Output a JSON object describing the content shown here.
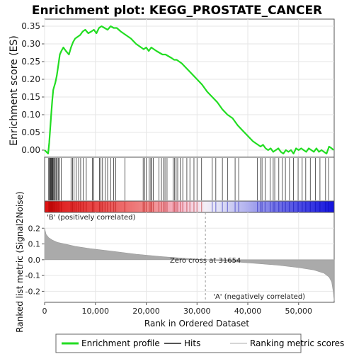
{
  "chart_data": {
    "type": "line",
    "title": "Enrichment plot: KEGG_PROSTATE_CANCER",
    "es_panel": {
      "ylabel": "Enrichment score (ES)",
      "ylim": [
        -0.02,
        0.37
      ],
      "yticks": [
        0.0,
        0.05,
        0.1,
        0.15,
        0.2,
        0.25,
        0.3,
        0.35
      ],
      "ytick_labels": [
        "0.00",
        "0.05",
        "0.10",
        "0.15",
        "0.20",
        "0.25",
        "0.30",
        "0.35"
      ],
      "series": [
        {
          "name": "Enrichment profile",
          "color": "#22dd22",
          "x": [
            0,
            700,
            900,
            1100,
            1300,
            1500,
            1700,
            1900,
            2100,
            2400,
            2700,
            3000,
            3300,
            3700,
            4200,
            4800,
            5200,
            5600,
            6000,
            6500,
            7000,
            7500,
            8000,
            8600,
            9200,
            9700,
            10200,
            10700,
            11200,
            11800,
            12400,
            13000,
            13600,
            14200,
            15000,
            16000,
            17000,
            18000,
            19000,
            19500,
            20000,
            20500,
            21000,
            21500,
            22000,
            22600,
            23200,
            23800,
            24400,
            25000,
            25500,
            26000,
            27000,
            28000,
            29000,
            30000,
            31000,
            32000,
            33000,
            34000,
            35000,
            36000,
            37000,
            38000,
            39000,
            40000,
            41000,
            42000,
            42500,
            43000,
            43500,
            44000,
            44500,
            45000,
            45500,
            46000,
            46500,
            47000,
            47500,
            48000,
            48500,
            49000,
            49500,
            50000,
            50500,
            51000,
            51500,
            52000,
            52500,
            53000,
            53500,
            54000,
            54500,
            55000,
            55500,
            56000,
            56500,
            56900
          ],
          "y": [
            0.0,
            -0.01,
            0.02,
            0.06,
            0.1,
            0.14,
            0.17,
            0.18,
            0.19,
            0.21,
            0.24,
            0.27,
            0.28,
            0.29,
            0.28,
            0.27,
            0.29,
            0.305,
            0.315,
            0.32,
            0.325,
            0.335,
            0.34,
            0.33,
            0.335,
            0.34,
            0.33,
            0.345,
            0.35,
            0.345,
            0.34,
            0.35,
            0.345,
            0.345,
            0.335,
            0.325,
            0.315,
            0.3,
            0.29,
            0.285,
            0.29,
            0.28,
            0.29,
            0.285,
            0.28,
            0.275,
            0.27,
            0.27,
            0.265,
            0.26,
            0.255,
            0.255,
            0.245,
            0.23,
            0.215,
            0.2,
            0.185,
            0.165,
            0.15,
            0.135,
            0.115,
            0.1,
            0.09,
            0.07,
            0.055,
            0.04,
            0.025,
            0.015,
            0.01,
            0.015,
            0.005,
            0.0,
            0.005,
            -0.005,
            0.0,
            0.005,
            -0.005,
            -0.01,
            0.0,
            -0.005,
            0.0,
            -0.01,
            0.005,
            0.0,
            0.005,
            0.0,
            -0.005,
            0.005,
            0.0,
            -0.005,
            0.005,
            -0.005,
            0.0,
            -0.005,
            -0.01,
            0.01,
            0.005,
            0.0
          ]
        }
      ]
    },
    "hits_panel": {
      "name": "Hits",
      "hit_positions": [
        800,
        950,
        1050,
        1150,
        1250,
        1350,
        1450,
        1550,
        1650,
        1800,
        1950,
        2100,
        2300,
        2500,
        2700,
        3000,
        3300,
        5200,
        5500,
        5800,
        6200,
        6700,
        7100,
        7600,
        8200,
        9400,
        9700,
        10800,
        11100,
        11400,
        11900,
        12400,
        13000,
        13600,
        14000,
        15800,
        19400,
        19700,
        20000,
        20600,
        20900,
        21100,
        21400,
        22500,
        23000,
        23400,
        23700,
        24100,
        25300,
        25600,
        25900,
        26200,
        26700,
        27200,
        28000,
        28600,
        29400,
        30000,
        30900,
        33000,
        33700,
        35000,
        36000,
        37500,
        38200,
        41900,
        42500,
        42800,
        43400,
        44400,
        45000,
        45300,
        46100,
        46800,
        47400,
        48200,
        49000,
        49900,
        50700,
        51400,
        52300,
        53300,
        54200,
        55300,
        55900
      ]
    },
    "ranking_panel": {
      "ylabel": "Ranked list metric (Signal2Noise)",
      "ylim": [
        -0.27,
        0.3
      ],
      "yticks": [
        0.2,
        0.1,
        0.0,
        -0.1,
        -0.2
      ],
      "ytick_labels": [
        "0.2",
        "0.1",
        "0.0",
        "-0.1",
        "-0.2"
      ],
      "x": [
        0,
        300,
        800,
        1500,
        2500,
        4000,
        6000,
        9000,
        13000,
        18000,
        23000,
        28000,
        31654,
        36000,
        41000,
        46000,
        50000,
        53000,
        55000,
        56000,
        56500,
        56800,
        57000
      ],
      "y": [
        0.2,
        0.16,
        0.14,
        0.125,
        0.11,
        0.1,
        0.085,
        0.07,
        0.055,
        0.035,
        0.02,
        0.008,
        0.0,
        -0.01,
        -0.022,
        -0.035,
        -0.05,
        -0.065,
        -0.085,
        -0.11,
        -0.14,
        -0.2,
        -0.26
      ],
      "label_positive": "'B' (positively correlated)",
      "label_negative": "'A' (negatively correlated)",
      "zero_cross_label": "Zero cross at 31654",
      "zero_cross_x": 31654
    },
    "xaxis": {
      "xlabel": "Rank in Ordered Dataset",
      "xlim": [
        0,
        57000
      ],
      "xticks": [
        0,
        10000,
        20000,
        30000,
        40000,
        50000
      ],
      "xtick_labels": [
        "0",
        "10,000",
        "20,000",
        "30,000",
        "40,000",
        "50,000"
      ]
    },
    "legend": {
      "placement": "bottom",
      "entries": [
        {
          "label": "Enrichment profile",
          "color": "#22dd22"
        },
        {
          "label": "Hits",
          "color": "#555555"
        },
        {
          "label": "Ranking metric scores",
          "color": "#c8c8c8"
        }
      ]
    },
    "colors": {
      "positive_band": "#dd1111",
      "negative_band": "#1111dd",
      "profile": "#22dd22",
      "ranking_fill": "#aaaaaa",
      "positive_label": "#cc0000",
      "negative_label": "#0000cc"
    }
  }
}
